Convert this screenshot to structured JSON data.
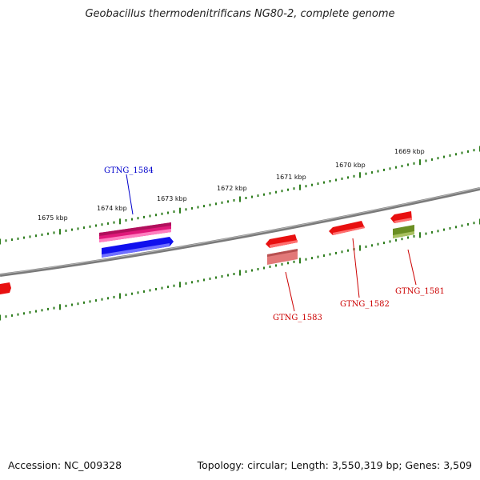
{
  "title": "Geobacillus thermodenitrificans NG80-2, complete genome",
  "footer": {
    "accession": "Accession: NC_009328",
    "summary": "Topology: circular; Length: 3,550,319 bp; Genes: 3,509"
  },
  "scale_labels": [
    "1675 kbp",
    "1674 kbp",
    "1673 kbp",
    "1672 kbp",
    "1671 kbp",
    "1670 kbp",
    "1669 kbp"
  ],
  "gene_labels": [
    {
      "name": "GTNG_1584",
      "color": "#0000cc"
    },
    {
      "name": "GTNG_1583",
      "color": "#cc0000"
    },
    {
      "name": "GTNG_1582",
      "color": "#cc0000"
    },
    {
      "name": "GTNG_1581",
      "color": "#cc0000"
    }
  ],
  "colors": {
    "backbone": "#808080",
    "tick": "#2e7d1e",
    "magenta": "#e0197a",
    "blue": "#1010ee",
    "red": "#e81010",
    "pink": "#e27878",
    "olive": "#6b8e23"
  }
}
